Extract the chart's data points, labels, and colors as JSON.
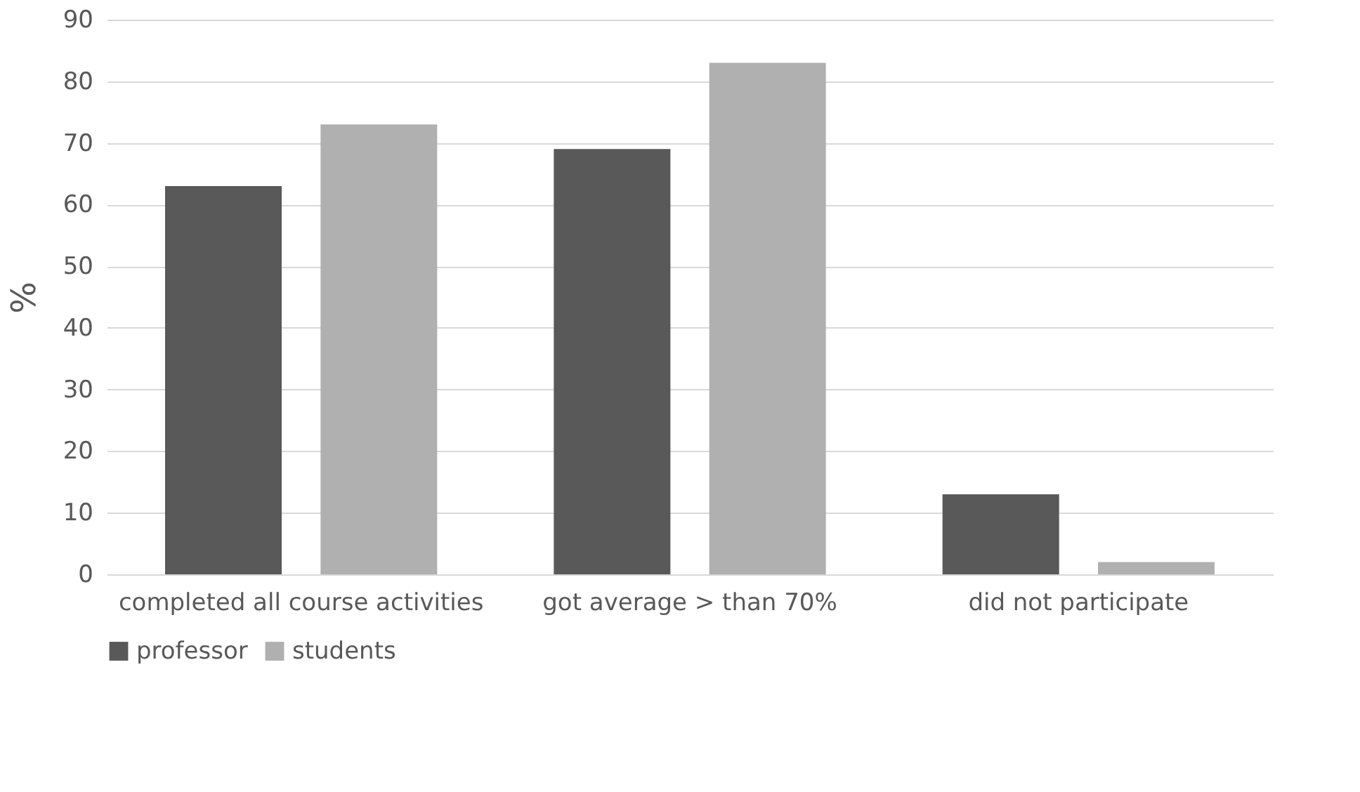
{
  "chart_data": {
    "type": "bar",
    "ylabel": "%",
    "categories": [
      "completed all course activities",
      "got average > than 70%",
      "did not participate"
    ],
    "series": [
      {
        "name": "professor",
        "color": "#595959",
        "values": [
          63,
          69,
          13
        ]
      },
      {
        "name": "students",
        "color": "#b0b0b0",
        "values": [
          73,
          83,
          2
        ]
      }
    ],
    "ylim": [
      0,
      90
    ],
    "yticks": [
      0,
      10,
      20,
      30,
      40,
      50,
      60,
      70,
      80,
      90
    ],
    "grid": "y",
    "legend": "bottom"
  }
}
